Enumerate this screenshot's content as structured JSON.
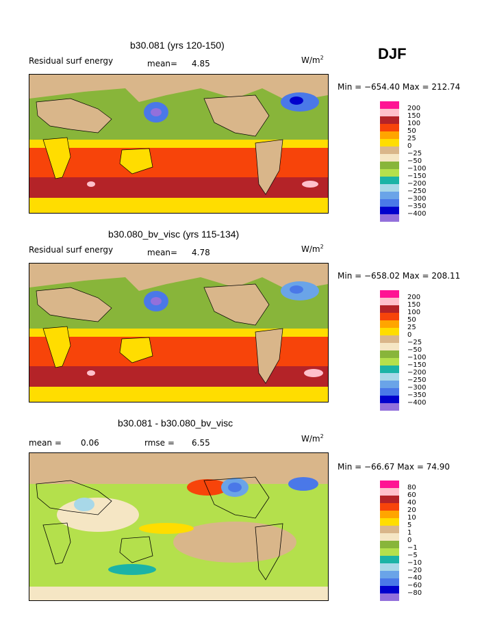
{
  "season": "DJF",
  "colors": {
    "deep_ocean_pos": "#f7440a",
    "mid_pos": "#b42328",
    "yellow": "#ffdd00",
    "tan": "#d9b68a",
    "green": "#88b53a",
    "lightgreen": "#b4e04c",
    "blue": "#4a78e8",
    "cyan": "#1bb3a6",
    "pink": "#ffc0cb"
  },
  "panels": [
    {
      "title": "b30.081 (yrs 120-150)",
      "left_label": "Residual surf energy",
      "mean_label": "mean=",
      "mean_value": "4.85",
      "units": "W/m",
      "units_exp": "2",
      "minmax": "Min = −654.40 Max = 212.74",
      "colorbar": {
        "colors": [
          "#ff1493",
          "#ffc0cb",
          "#b42328",
          "#f7440a",
          "#ffa500",
          "#ffdd00",
          "#d9b68a",
          "#f5e6c4",
          "#88b53a",
          "#b4e04c",
          "#1bb3a6",
          "#a8d8e8",
          "#6aa4e8",
          "#4a78e8",
          "#0000cd",
          "#9370db"
        ],
        "labels": [
          "200",
          "150",
          "100",
          "50",
          "25",
          "0",
          "−25",
          "−50",
          "−100",
          "−150",
          "−200",
          "−250",
          "−300",
          "−350",
          "−400"
        ]
      }
    },
    {
      "title": "b30.080_bv_visc (yrs 115-134)",
      "left_label": "Residual surf energy",
      "mean_label": "mean=",
      "mean_value": "4.78",
      "units": "W/m",
      "units_exp": "2",
      "minmax": "Min = −658.02 Max = 208.11",
      "colorbar": {
        "colors": [
          "#ff1493",
          "#ffc0cb",
          "#b42328",
          "#f7440a",
          "#ffa500",
          "#ffdd00",
          "#d9b68a",
          "#f5e6c4",
          "#88b53a",
          "#b4e04c",
          "#1bb3a6",
          "#a8d8e8",
          "#6aa4e8",
          "#4a78e8",
          "#0000cd",
          "#9370db"
        ],
        "labels": [
          "200",
          "150",
          "100",
          "50",
          "25",
          "0",
          "−25",
          "−50",
          "−100",
          "−150",
          "−200",
          "−250",
          "−300",
          "−350",
          "−400"
        ]
      }
    },
    {
      "title": "b30.081 - b30.080_bv_visc",
      "left_label": "mean =",
      "mean_label": "",
      "mean_value": "0.06",
      "rmse_label": "rmse =",
      "rmse_value": "6.55",
      "units": "W/m",
      "units_exp": "2",
      "minmax": "Min = −66.67 Max =  74.90",
      "colorbar": {
        "colors": [
          "#ff1493",
          "#ffc0cb",
          "#b42328",
          "#f7440a",
          "#ffa500",
          "#ffdd00",
          "#d9b68a",
          "#f5e6c4",
          "#88b53a",
          "#b4e04c",
          "#1bb3a6",
          "#a8d8e8",
          "#6aa4e8",
          "#4a78e8",
          "#0000cd",
          "#9370db"
        ],
        "labels": [
          "80",
          "60",
          "40",
          "20",
          "10",
          "5",
          "1",
          "0",
          "−1",
          "−5",
          "−10",
          "−20",
          "−40",
          "−60",
          "−80"
        ]
      }
    }
  ],
  "chart_data": [
    {
      "type": "heatmap",
      "title": "b30.081 (yrs 120-150)",
      "variable": "Residual surf energy",
      "units": "W/m^2",
      "mean": 4.85,
      "min": -654.4,
      "max": 212.74,
      "contour_levels": [
        200,
        150,
        100,
        50,
        25,
        0,
        -25,
        -50,
        -100,
        -150,
        -200,
        -250,
        -300,
        -350,
        -400
      ]
    },
    {
      "type": "heatmap",
      "title": "b30.080_bv_visc (yrs 115-134)",
      "variable": "Residual surf energy",
      "units": "W/m^2",
      "mean": 4.78,
      "min": -658.02,
      "max": 208.11,
      "contour_levels": [
        200,
        150,
        100,
        50,
        25,
        0,
        -25,
        -50,
        -100,
        -150,
        -200,
        -250,
        -300,
        -350,
        -400
      ]
    },
    {
      "type": "heatmap",
      "title": "b30.081 - b30.080_bv_visc",
      "units": "W/m^2",
      "mean": 0.06,
      "rmse": 6.55,
      "min": -66.67,
      "max": 74.9,
      "contour_levels": [
        80,
        60,
        40,
        20,
        10,
        5,
        1,
        0,
        -1,
        -5,
        -10,
        -20,
        -40,
        -60,
        -80
      ]
    }
  ]
}
